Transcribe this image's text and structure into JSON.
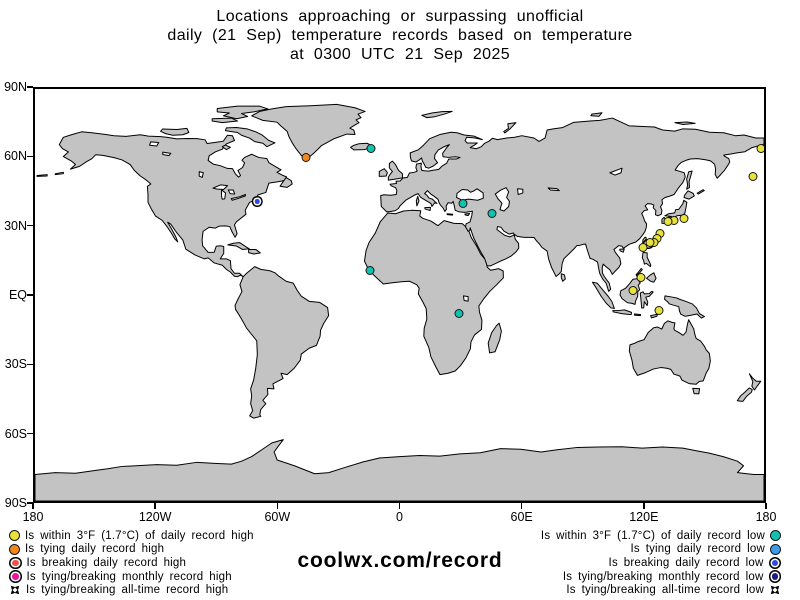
{
  "title": {
    "line1": "Locations approaching or surpassing unofficial",
    "line2": "daily (21 Sep) temperature records based on temperature",
    "line3": "at 0300 UTC 21 Sep 2025"
  },
  "watermark": "coolwx.com/record",
  "colors": {
    "land": "#c3c3c3",
    "ocean": "#ffffff",
    "coastline": "#000000",
    "frame": "#000000"
  },
  "marker_styles": {
    "within-daily-high": {
      "shape": "dot",
      "color": "#e9e23b"
    },
    "tying-daily-high": {
      "shape": "dot",
      "color": "#f0871f"
    },
    "breaking-daily-high": {
      "shape": "ring",
      "color": "#f05548"
    },
    "monthly-high": {
      "shape": "ring",
      "color": "#ef109b"
    },
    "alltime-high": {
      "shape": "arrows",
      "color": "#000000"
    },
    "within-daily-low": {
      "shape": "dot",
      "color": "#10c3b1"
    },
    "tying-daily-low": {
      "shape": "dot",
      "color": "#3c9bea"
    },
    "breaking-daily-low": {
      "shape": "ring",
      "color": "#2c49ec"
    },
    "monthly-low": {
      "shape": "ring",
      "color": "#1a1a82"
    },
    "alltime-low": {
      "shape": "arrows",
      "color": "#000000"
    }
  },
  "legend": {
    "high": [
      {
        "label": "Is within 3°F (1.7°C) of daily record high",
        "category": "within-daily-high"
      },
      {
        "label": "Is tying daily record high",
        "category": "tying-daily-high"
      },
      {
        "label": "Is breaking daily record high",
        "category": "breaking-daily-high"
      },
      {
        "label": "Is tying/breaking monthly record high",
        "category": "monthly-high"
      },
      {
        "label": "Is tying/breaking all-time record high",
        "category": "alltime-high"
      }
    ],
    "low": [
      {
        "label": "Is within 3°F (1.7°C) of daily record low",
        "category": "within-daily-low"
      },
      {
        "label": "Is tying daily record low",
        "category": "tying-daily-low"
      },
      {
        "label": "Is breaking daily record low",
        "category": "breaking-daily-low"
      },
      {
        "label": "Is tying/breaking monthly record low",
        "category": "monthly-low"
      },
      {
        "label": "Is tying/breaking all-time record low",
        "category": "alltime-low"
      }
    ]
  },
  "chart_data": {
    "type": "scatter-map",
    "projection": "equirectangular",
    "lon_range": [
      -180,
      180
    ],
    "lat_range": [
      -90,
      90
    ],
    "lat_ticks": [
      {
        "label": "90N",
        "lat": 90
      },
      {
        "label": "60N",
        "lat": 60
      },
      {
        "label": "30N",
        "lat": 30
      },
      {
        "label": "EQ",
        "lat": 0
      },
      {
        "label": "30S",
        "lat": -30
      },
      {
        "label": "60S",
        "lat": -60
      },
      {
        "label": "90S",
        "lat": -90
      }
    ],
    "lon_ticks": [
      {
        "label": "180",
        "lon": -180
      },
      {
        "label": "120W",
        "lon": -120
      },
      {
        "label": "60W",
        "lon": -60
      },
      {
        "label": "0",
        "lon": 0
      },
      {
        "label": "60E",
        "lon": 60
      },
      {
        "label": "120E",
        "lon": 120
      },
      {
        "label": "180",
        "lon": 180
      }
    ],
    "points": [
      {
        "lon": -46.7,
        "lat": 60.2,
        "category": "tying-daily-high"
      },
      {
        "lon": -15.0,
        "lat": 64.0,
        "category": "within-daily-low"
      },
      {
        "lon": -70.9,
        "lat": 40.7,
        "category": "breaking-daily-low"
      },
      {
        "lon": -15.5,
        "lat": 11.3,
        "category": "within-daily-low"
      },
      {
        "lon": 30.4,
        "lat": 40.3,
        "category": "within-daily-low"
      },
      {
        "lon": 44.5,
        "lat": 36.0,
        "category": "within-daily-low"
      },
      {
        "lon": 28.4,
        "lat": -7.3,
        "category": "within-daily-low"
      },
      {
        "lon": 176.6,
        "lat": 64.0,
        "category": "within-daily-high"
      },
      {
        "lon": 172.6,
        "lat": 51.9,
        "category": "within-daily-high"
      },
      {
        "lon": 138.5,
        "lat": 33.9,
        "category": "within-daily-high"
      },
      {
        "lon": 134.0,
        "lat": 32.9,
        "category": "within-daily-high"
      },
      {
        "lon": 131.0,
        "lat": 32.4,
        "category": "within-daily-high"
      },
      {
        "lon": 127.2,
        "lat": 27.1,
        "category": "within-daily-high"
      },
      {
        "lon": 125.3,
        "lat": 25.1,
        "category": "within-daily-high"
      },
      {
        "lon": 121.3,
        "lat": 22.5,
        "category": "breaking-daily-high"
      },
      {
        "lon": 123.9,
        "lat": 23.4,
        "category": "within-daily-high"
      },
      {
        "lon": 122.1,
        "lat": 23.4,
        "category": "within-daily-high"
      },
      {
        "lon": 118.6,
        "lat": 21.2,
        "category": "within-daily-high"
      },
      {
        "lon": 117.8,
        "lat": 8.2,
        "category": "within-daily-high"
      },
      {
        "lon": 113.9,
        "lat": 2.6,
        "category": "within-daily-high"
      },
      {
        "lon": 126.7,
        "lat": -6.1,
        "category": "within-daily-high"
      }
    ]
  }
}
